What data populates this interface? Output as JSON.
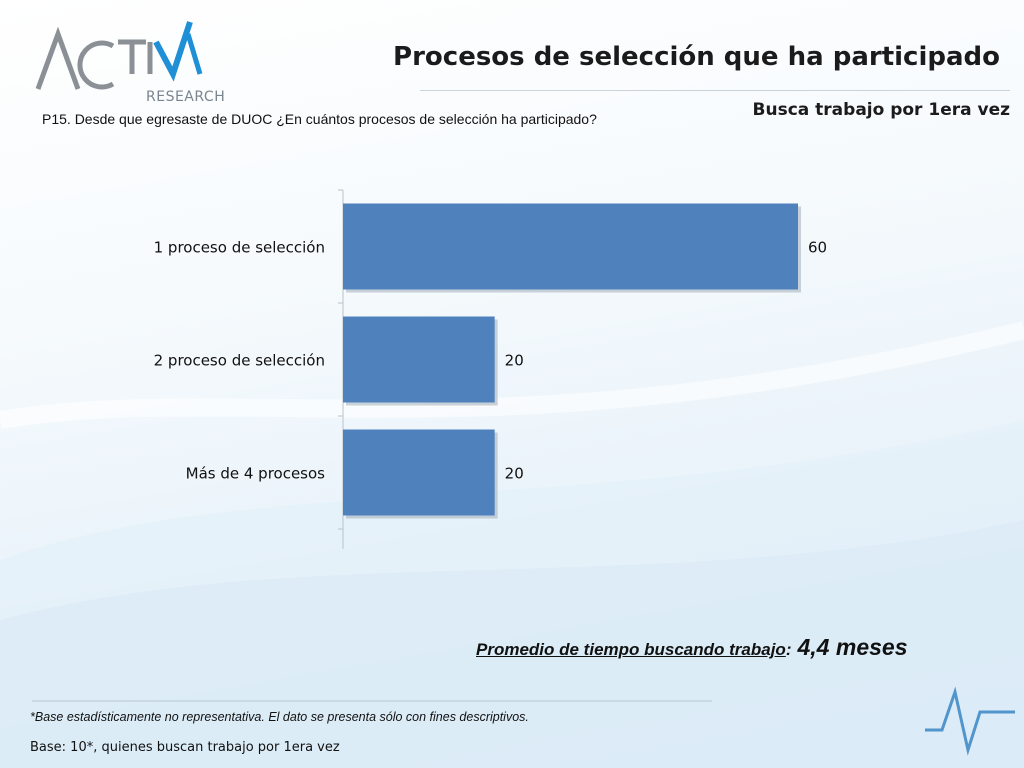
{
  "header": {
    "title": "Procesos de selección que ha participado",
    "subtitle": "Busca trabajo por 1era vez",
    "question": "P15. Desde que egresaste de DUOC ¿En cuántos procesos de selección ha participado?"
  },
  "logo": {
    "research": "RESEARCH"
  },
  "chart_data": {
    "type": "bar",
    "orientation": "horizontal",
    "categories": [
      "1 proceso de selección",
      "2 proceso de selección",
      "Más de 4 procesos"
    ],
    "values": [
      60,
      20,
      20
    ],
    "value_labels": [
      "60",
      "20",
      "20"
    ],
    "bar_color": "#4f81bd",
    "grid": false,
    "legend": "none"
  },
  "summary": {
    "label": "Promedio de tiempo buscando trabajo",
    "colon": ":",
    "value": "4,4 meses"
  },
  "footer": {
    "footnote": "*Base estadísticamente no representativa. El dato se presenta sólo con fines descriptivos.",
    "base": "Base: 10*, quienes buscan trabajo por 1era vez"
  },
  "colors": {
    "accent": "#2f7fc1",
    "bar": "#4f81bd"
  }
}
